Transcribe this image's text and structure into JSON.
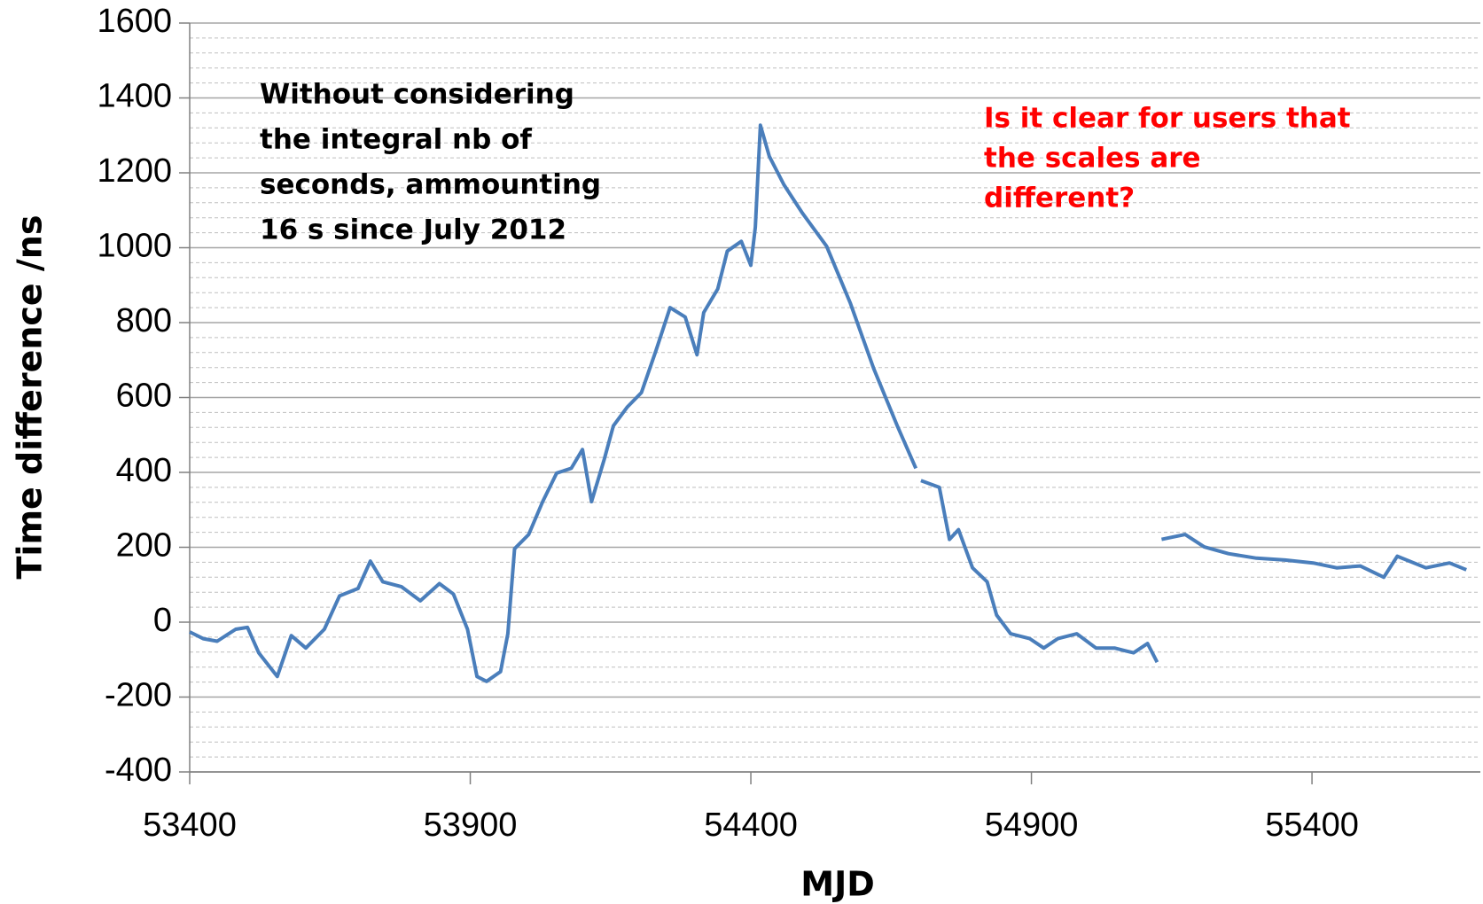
{
  "chart_data": {
    "type": "line",
    "xlabel": "MJD",
    "ylabel": "Time difference /ns",
    "xlim": [
      53400,
      55700
    ],
    "xticks": [
      53400,
      53900,
      54400,
      54900,
      55400
    ],
    "ylim": [
      -400,
      1600
    ],
    "yticks": [
      -400,
      -200,
      0,
      200,
      400,
      600,
      800,
      1000,
      1200,
      1400,
      1600
    ],
    "grid": true,
    "series": [
      {
        "color": "#4a7ebb",
        "x": [
          53400,
          53424,
          53449,
          53482,
          53503,
          53523,
          53556,
          53581,
          53607,
          53640,
          53667,
          53700,
          53722,
          53744,
          53777,
          53811,
          53845,
          53870,
          53895,
          53912,
          53929,
          53954,
          53967,
          53979,
          54004,
          54029,
          54054,
          54080,
          54100,
          54116,
          54139,
          54155,
          54180,
          54205,
          54231,
          54256,
          54283,
          54304,
          54316,
          54341,
          54358,
          54383,
          54400,
          54408,
          54417,
          54433,
          54459,
          54492,
          54535,
          54577,
          54619,
          54661,
          54694,
          54698,
          54703,
          54736,
          54754,
          54770,
          54795,
          54821,
          54838,
          54863,
          54897,
          54922,
          54947,
          54981,
          55015,
          55048,
          55082,
          55107,
          55124,
          55128,
          55132,
          55174,
          55208,
          55251,
          55301,
          55352,
          55402,
          55444,
          55486,
          55528,
          55552,
          55603,
          55645,
          55675
        ],
        "values": [
          -26,
          -44,
          -51,
          -19,
          -14,
          -82,
          -145,
          -36,
          -69,
          -19,
          70,
          90,
          163,
          108,
          95,
          57,
          103,
          75,
          -19,
          -145,
          -158,
          -132,
          -31,
          196,
          234,
          322,
          398,
          411,
          461,
          322,
          436,
          524,
          575,
          613,
          726,
          840,
          815,
          714,
          827,
          890,
          991,
          1017,
          953,
          1055,
          1327,
          1244,
          1168,
          1092,
          1004,
          853,
          677,
          524,
          411,
          null,
          378,
          360,
          221,
          247,
          145,
          108,
          19,
          -31,
          -44,
          -69,
          -44,
          -31,
          -69,
          -69,
          -82,
          -57,
          -107,
          null,
          221,
          234,
          201,
          183,
          171,
          166,
          158,
          145,
          150,
          120,
          176,
          145,
          158,
          140
        ]
      }
    ],
    "annotations": [
      {
        "color": "#000000",
        "lines": [
          "Without considering",
          "the integral nb of",
          "seconds, ammounting",
          "16 s since July 2012"
        ]
      },
      {
        "color": "#ff0000",
        "lines": [
          "Is it clear for users that",
          "the scales are",
          "different?"
        ]
      }
    ]
  }
}
